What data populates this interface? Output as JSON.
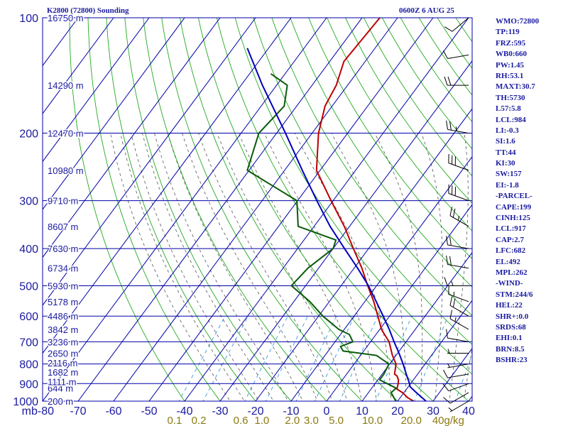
{
  "header": {
    "station": "K2800 (72800) Sounding",
    "valid_time": "0600Z  6 AUG 25"
  },
  "indices": [
    "WMO:72800",
    "TP:119",
    "FRZ:595",
    "WB0:660",
    "PW:1.45",
    "RH:53.1",
    "MAXT:30.7",
    "TH:5730",
    "L57:5.8",
    "LCL:984",
    "LI:-0.3",
    "SI:1.6",
    "TT:44",
    "KI:30",
    "SW:157",
    "EI:-1.8",
    "-PARCEL-",
    "CAPE:199",
    "CINH:125",
    "LCL:917",
    "CAP:2.7",
    "LFC:682",
    "EL:492",
    "MPL:262",
    "-WIND-",
    "STM:244/6",
    "HEL:22",
    "SHR+:0.0",
    "SRDS:68",
    "EHI:0.1",
    "BRN:8.5",
    "BSHR:23"
  ],
  "colors": {
    "background": "#ffffff",
    "grid": "#0000a8",
    "dry_adiabat": "#22aa22",
    "moist_adiabat": "#555555",
    "mixing_ratio": "#3399dd",
    "temperature": "#bb0000",
    "dewpoint": "#0b5a0b",
    "parcel": "#0000bb",
    "axis_text": "#1a1aa0",
    "mixing_text": "#8a7a10",
    "wind_barb": "#000000"
  },
  "chart_data": {
    "type": "line",
    "title": "K2800 (72800) Sounding",
    "xlabel": "",
    "ylabel": "mb",
    "x_axis_unit": "°C",
    "y_axis_unit": "mb",
    "y_scale": "log",
    "y_reversed": true,
    "xlim": [
      -80,
      40
    ],
    "ylim": [
      1000,
      100
    ],
    "skew_deg_per_mb_decade": 80,
    "y_ticks": [
      100,
      200,
      300,
      400,
      500,
      600,
      700,
      800,
      900,
      1000
    ],
    "y_tick_labels": [
      "100",
      "200",
      "300",
      "400",
      "500",
      "600",
      "700",
      "800",
      "900",
      "1000"
    ],
    "x_ticks": [
      -80,
      -70,
      -60,
      -50,
      -40,
      -30,
      -20,
      -10,
      0,
      10,
      20,
      30,
      40
    ],
    "x_tick_labels": [
      "mb-80",
      "-70",
      "-60",
      "-50",
      "-40",
      "-30",
      "-20",
      "-10",
      "0",
      "10",
      "20",
      "30",
      "40"
    ],
    "height_labels": [
      {
        "p": 1000,
        "label": "200 m"
      },
      {
        "p": 925,
        "label": "644 m"
      },
      {
        "p": 889,
        "label": "1111 m"
      },
      {
        "p": 840,
        "label": "1682 m"
      },
      {
        "p": 795,
        "label": "2116 m"
      },
      {
        "p": 750,
        "label": "2650 m"
      },
      {
        "p": 700,
        "label": "3236 m"
      },
      {
        "p": 650,
        "label": "3842 m"
      },
      {
        "p": 600,
        "label": "4486 m"
      },
      {
        "p": 550,
        "label": "5178 m"
      },
      {
        "p": 500,
        "label": "5930 m"
      },
      {
        "p": 450,
        "label": "6734 m"
      },
      {
        "p": 400,
        "label": "7630 m"
      },
      {
        "p": 350,
        "label": "8607 m"
      },
      {
        "p": 300,
        "label": "9710 m"
      },
      {
        "p": 250,
        "label": "10980 m"
      },
      {
        "p": 200,
        "label": "12470 m"
      },
      {
        "p": 150,
        "label": "14290 m"
      },
      {
        "p": 100,
        "label": "16750 m"
      }
    ],
    "mixing_ratio_labels": [
      "0.1",
      "0.2",
      "0.6",
      "1.0",
      "2.0",
      "3.0",
      "5.0",
      "10.0",
      "20.0",
      "40g/kg"
    ],
    "series": [
      {
        "key": "temperature",
        "points": [
          [
            1000,
            24.5
          ],
          [
            980,
            22.2
          ],
          [
            950,
            19.6
          ],
          [
            930,
            17.3
          ],
          [
            900,
            16.5
          ],
          [
            880,
            15.8
          ],
          [
            860,
            14.6
          ],
          [
            850,
            13.5
          ],
          [
            800,
            11.8
          ],
          [
            760,
            9.0
          ],
          [
            700,
            5.2
          ],
          [
            650,
            0.5
          ],
          [
            600,
            -3.3
          ],
          [
            550,
            -7.5
          ],
          [
            500,
            -12.5
          ],
          [
            450,
            -17.8
          ],
          [
            400,
            -24.3
          ],
          [
            350,
            -31.5
          ],
          [
            300,
            -40.6
          ],
          [
            250,
            -51.0
          ],
          [
            200,
            -58.2
          ],
          [
            170,
            -62.0
          ],
          [
            150,
            -63.2
          ],
          [
            130,
            -66.0
          ],
          [
            100,
            -65.0
          ]
        ]
      },
      {
        "key": "dewpoint",
        "points": [
          [
            1000,
            19.5
          ],
          [
            950,
            16.4
          ],
          [
            925,
            16.9
          ],
          [
            880,
            10.5
          ],
          [
            850,
            10.5
          ],
          [
            800,
            9.8
          ],
          [
            760,
            4.5
          ],
          [
            740,
            -5.8
          ],
          [
            720,
            -7.5
          ],
          [
            700,
            -5.0
          ],
          [
            670,
            -7.5
          ],
          [
            650,
            -11.5
          ],
          [
            600,
            -18.8
          ],
          [
            550,
            -25.5
          ],
          [
            500,
            -34.0
          ],
          [
            450,
            -33.0
          ],
          [
            400,
            -30.0
          ],
          [
            380,
            -31.0
          ],
          [
            350,
            -44.5
          ],
          [
            300,
            -50.2
          ],
          [
            250,
            -70.5
          ],
          [
            200,
            -75.0
          ],
          [
            170,
            -73.5
          ],
          [
            150,
            -77.0
          ],
          [
            140,
            -84.0
          ]
        ]
      },
      {
        "key": "parcel",
        "points": [
          [
            1000,
            28.0
          ],
          [
            950,
            23.5
          ],
          [
            917,
            20.5
          ],
          [
            900,
            19.7
          ],
          [
            850,
            16.8
          ],
          [
            800,
            13.8
          ],
          [
            750,
            10.4
          ],
          [
            700,
            6.6
          ],
          [
            650,
            2.7
          ],
          [
            600,
            -1.8
          ],
          [
            550,
            -6.8
          ],
          [
            500,
            -12.3
          ],
          [
            450,
            -19.0
          ],
          [
            400,
            -26.8
          ],
          [
            350,
            -35.5
          ],
          [
            300,
            -44.6
          ],
          [
            250,
            -55.0
          ],
          [
            200,
            -67.5
          ],
          [
            150,
            -84.0
          ],
          [
            120,
            -96.0
          ]
        ]
      }
    ],
    "wind_profile": [
      {
        "p": 1000,
        "dir": 240,
        "spd": 5
      },
      {
        "p": 950,
        "dir": 240,
        "spd": 10
      },
      {
        "p": 900,
        "dir": 250,
        "spd": 10
      },
      {
        "p": 850,
        "dir": 260,
        "spd": 10
      },
      {
        "p": 800,
        "dir": 260,
        "spd": 5
      },
      {
        "p": 750,
        "dir": 270,
        "spd": 5
      },
      {
        "p": 700,
        "dir": 280,
        "spd": 10
      },
      {
        "p": 650,
        "dir": 300,
        "spd": 15
      },
      {
        "p": 600,
        "dir": 300,
        "spd": 20
      },
      {
        "p": 550,
        "dir": 290,
        "spd": 15
      },
      {
        "p": 500,
        "dir": 270,
        "spd": 15
      },
      {
        "p": 450,
        "dir": 280,
        "spd": 20
      },
      {
        "p": 400,
        "dir": 280,
        "spd": 20
      },
      {
        "p": 350,
        "dir": 300,
        "spd": 25
      },
      {
        "p": 300,
        "dir": 290,
        "spd": 30
      },
      {
        "p": 250,
        "dir": 290,
        "spd": 30
      },
      {
        "p": 200,
        "dir": 280,
        "spd": 25
      },
      {
        "p": 150,
        "dir": 270,
        "spd": 20
      },
      {
        "p": 125,
        "dir": 260,
        "spd": 10
      },
      {
        "p": 100,
        "dir": 230,
        "spd": 10
      }
    ],
    "grid": true
  }
}
